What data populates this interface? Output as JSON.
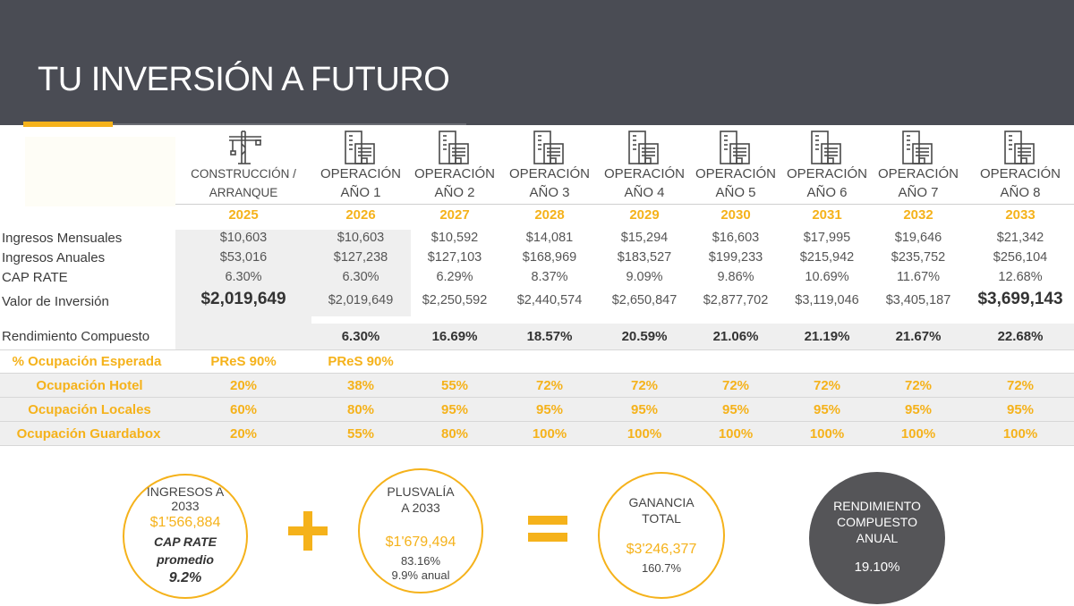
{
  "title": "TU INVERSIÓN A FUTURO",
  "columns": [
    {
      "line1": "CONSTRUCCIÓN /",
      "line2": "ARRANQUE",
      "year": "2025",
      "icon": "crane-icon"
    },
    {
      "line1": "OPERACIÓN",
      "line2": "AÑO 1",
      "year": "2026",
      "icon": "building-icon"
    },
    {
      "line1": "OPERACIÓN",
      "line2": "AÑO 2",
      "year": "2027",
      "icon": "building-icon"
    },
    {
      "line1": "OPERACIÓN",
      "line2": "AÑO 3",
      "year": "2028",
      "icon": "building-icon"
    },
    {
      "line1": "OPERACIÓN",
      "line2": "AÑO 4",
      "year": "2029",
      "icon": "building-icon"
    },
    {
      "line1": "OPERACIÓN",
      "line2": "AÑO 5",
      "year": "2030",
      "icon": "building-icon"
    },
    {
      "line1": "OPERACIÓN",
      "line2": "AÑO 6",
      "year": "2031",
      "icon": "building-icon"
    },
    {
      "line1": "OPERACIÓN",
      "line2": "AÑO 7",
      "year": "2032",
      "icon": "building-icon"
    },
    {
      "line1": "OPERACIÓN",
      "line2": "AÑO 8",
      "year": "2033",
      "icon": "building-icon"
    }
  ],
  "rows": {
    "ingresos_mensuales": {
      "label": "Ingresos Mensuales",
      "values": [
        "$10,603",
        "$10,603",
        "$10,592",
        "$14,081",
        "$15,294",
        "$16,603",
        "$17,995",
        "$19,646",
        "$21,342"
      ]
    },
    "ingresos_anuales": {
      "label": "Ingresos Anuales",
      "values": [
        "$53,016",
        "$127,238",
        "$127,103",
        "$168,969",
        "$183,527",
        "$199,233",
        "$215,942",
        "$235,752",
        "$256,104"
      ]
    },
    "cap_rate": {
      "label": "CAP RATE",
      "values": [
        "6.30%",
        "6.30%",
        "6.29%",
        "8.37%",
        "9.09%",
        "9.86%",
        "10.69%",
        "11.67%",
        "12.68%"
      ]
    },
    "valor_inversion": {
      "label": "Valor de Inversión",
      "values": [
        "$2,019,649",
        "$2,019,649",
        "$2,250,592",
        "$2,440,574",
        "$2,650,847",
        "$2,877,702",
        "$3,119,046",
        "$3,405,187",
        "$3,699,143"
      ]
    },
    "rendimiento": {
      "label": "Rendimiento Compuesto",
      "values": [
        "",
        "6.30%",
        "16.69%",
        "18.57%",
        "20.59%",
        "21.06%",
        "21.19%",
        "21.67%",
        "22.68%"
      ]
    }
  },
  "occupancy": [
    {
      "label": "% Ocupación Esperada",
      "values": [
        "PReS 90%",
        "PReS 90%",
        "",
        "",
        "",
        "",
        "",
        "",
        ""
      ]
    },
    {
      "label": "Ocupación Hotel",
      "values": [
        "20%",
        "38%",
        "55%",
        "72%",
        "72%",
        "72%",
        "72%",
        "72%",
        "72%"
      ]
    },
    {
      "label": "Ocupación Locales",
      "values": [
        "60%",
        "80%",
        "95%",
        "95%",
        "95%",
        "95%",
        "95%",
        "95%",
        "95%"
      ]
    },
    {
      "label": "Ocupación Guardabox",
      "values": [
        "20%",
        "55%",
        "80%",
        "100%",
        "100%",
        "100%",
        "100%",
        "100%",
        "100%"
      ]
    }
  ],
  "summary": {
    "ingresos": {
      "line1": "INGRESOS A",
      "line2": "2033",
      "amount": "$1'566,884",
      "cap1": "CAP RATE",
      "cap2": "promedio",
      "cap3": "9.2%"
    },
    "plusvalia": {
      "line1": "PLUSVALÍA",
      "line2": "A 2033",
      "amount": "$1'679,494",
      "pct": "83.16%",
      "anual": "9.9% anual"
    },
    "ganancia": {
      "line1": "GANANCIA",
      "line2": "TOTAL",
      "amount": "$3'246,377",
      "pct": "160.7%"
    },
    "rendimiento": {
      "line1": "RENDIMIENTO",
      "line2": "COMPUESTO",
      "line3": "ANUAL",
      "value": "19.10%"
    }
  },
  "colors": {
    "accent": "#f5b21b",
    "header": "#4a4c54",
    "dark_circle": "#555558"
  }
}
